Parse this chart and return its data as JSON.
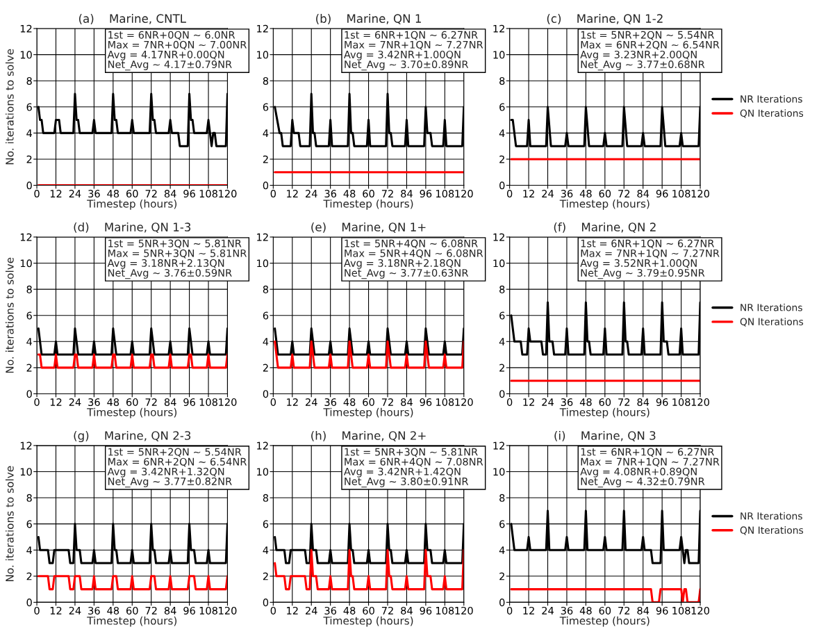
{
  "chart_data": [
    {
      "type": "line",
      "title": "(a)    Marine, CNTL",
      "xlabel": "Timestep (hours)",
      "ylabel": "No. iterations to solve",
      "annotations": [
        "1st = 6NR+0QN ~ 6.0NR\nMax = 7NR+0QN ~ 7.00NR\nAvg = 4.17NR+0.00QN\nNet_Avg ~ 4.17±0.79NR"
      ],
      "xlim": [
        0,
        120
      ],
      "ylim": [
        0,
        12
      ],
      "xticks": [
        0,
        12,
        24,
        36,
        48,
        60,
        72,
        84,
        96,
        108,
        120
      ],
      "yticks": [
        0,
        2,
        4,
        6,
        8,
        10,
        12
      ],
      "grid": true,
      "legend": false,
      "series": [
        {
          "color": "#000000",
          "x": [
            1,
            2,
            3,
            4,
            11,
            12,
            14,
            15,
            23,
            24,
            25,
            26,
            27,
            35,
            36,
            37,
            47,
            48,
            49,
            50,
            51,
            59,
            60,
            61,
            71,
            72,
            73,
            74,
            75,
            83,
            84,
            85,
            89,
            90,
            95,
            96,
            97,
            98,
            99,
            107,
            108,
            109,
            110,
            111,
            112,
            113,
            119,
            120
          ],
          "values": [
            6,
            5,
            5,
            4,
            4,
            5,
            5,
            4,
            4,
            7,
            5,
            5,
            4,
            4,
            5,
            4,
            4,
            7,
            5,
            5,
            4,
            4,
            5,
            4,
            4,
            7,
            5,
            5,
            4,
            4,
            5,
            4,
            4,
            3,
            3,
            7,
            5,
            5,
            4,
            4,
            5,
            4,
            3,
            4,
            4,
            3,
            3,
            7
          ]
        },
        {
          "color": "#ff0000",
          "x": [
            1,
            120
          ],
          "values": [
            0,
            0
          ]
        }
      ]
    },
    {
      "type": "line",
      "title": "(b)    Marine, QN 1",
      "xlabel": "Timestep (hours)",
      "annotations": [
        "1st = 6NR+1QN ~ 6.27NR\nMax = 7NR+1QN ~ 7.27NR\nAvg = 3.42NR+1.00QN\nNet_Avg ~ 3.70±0.89NR"
      ],
      "xlim": [
        0,
        120
      ],
      "ylim": [
        0,
        12
      ],
      "xticks": [
        0,
        12,
        24,
        36,
        48,
        60,
        72,
        84,
        96,
        108,
        120
      ],
      "yticks": [
        0,
        2,
        4,
        6,
        8,
        10,
        12
      ],
      "grid": true,
      "legend": false,
      "series": [
        {
          "color": "#000000",
          "x": [
            1,
            4,
            5,
            6,
            11,
            12,
            13,
            16,
            17,
            23,
            24,
            25,
            26,
            27,
            35,
            36,
            37,
            47,
            48,
            49,
            50,
            51,
            59,
            60,
            61,
            71,
            72,
            73,
            74,
            75,
            83,
            84,
            85,
            95,
            96,
            97,
            99,
            100,
            107,
            108,
            109,
            119,
            120
          ],
          "values": [
            6,
            4,
            4,
            3,
            3,
            5,
            4,
            4,
            3,
            3,
            7,
            4,
            4,
            3,
            3,
            5,
            3,
            3,
            7,
            4,
            4,
            3,
            3,
            5,
            3,
            3,
            7,
            4,
            4,
            3,
            3,
            5,
            3,
            3,
            6,
            4,
            4,
            3,
            3,
            5,
            3,
            3,
            6
          ]
        },
        {
          "color": "#ff0000",
          "x": [
            1,
            120
          ],
          "values": [
            1,
            1
          ]
        }
      ]
    },
    {
      "type": "line",
      "title": "(c)    Marine, QN 1-2",
      "xlabel": "Timestep (hours)",
      "annotations": [
        "1st = 5NR+2QN ~ 5.54NR\nMax = 6NR+2QN ~ 6.54NR\nAvg = 3.23NR+2.00QN\nNet_Avg ~ 3.77±0.68NR"
      ],
      "xlim": [
        0,
        120
      ],
      "ylim": [
        0,
        12
      ],
      "xticks": [
        0,
        12,
        24,
        36,
        48,
        60,
        72,
        84,
        96,
        108,
        120
      ],
      "yticks": [
        0,
        2,
        4,
        6,
        8,
        10,
        12
      ],
      "grid": true,
      "legend": "right",
      "series": [
        {
          "name": "NR Iterations",
          "color": "#000000",
          "x": [
            1,
            2,
            4,
            11,
            12,
            13,
            23,
            24,
            26,
            35,
            36,
            37,
            47,
            48,
            50,
            59,
            60,
            61,
            71,
            72,
            74,
            83,
            84,
            85,
            95,
            96,
            98,
            107,
            108,
            109,
            119,
            120
          ],
          "values": [
            5,
            5,
            3,
            3,
            5,
            3,
            3,
            6,
            3,
            3,
            4,
            3,
            3,
            6,
            3,
            3,
            4,
            3,
            3,
            6,
            3,
            3,
            4,
            3,
            3,
            6,
            3,
            3,
            4,
            3,
            3,
            6
          ]
        },
        {
          "name": "QN Iterations",
          "color": "#ff0000",
          "x": [
            1,
            120
          ],
          "values": [
            2,
            2
          ]
        }
      ]
    },
    {
      "type": "line",
      "title": "(d)    Marine, QN 1-3",
      "xlabel": "Timestep (hours)",
      "ylabel": "No. iterations to solve",
      "annotations": [
        "1st = 5NR+3QN ~ 5.81NR\nMax = 5NR+3QN ~ 5.81NR\nAvg = 3.18NR+2.13QN\nNet_Avg ~ 3.76±0.59NR"
      ],
      "xlim": [
        0,
        120
      ],
      "ylim": [
        0,
        12
      ],
      "xticks": [
        0,
        12,
        24,
        36,
        48,
        60,
        72,
        84,
        96,
        108,
        120
      ],
      "yticks": [
        0,
        2,
        4,
        6,
        8,
        10,
        12
      ],
      "grid": true,
      "legend": false,
      "series": [
        {
          "color": "#000000",
          "x": [
            1,
            3,
            11,
            12,
            13,
            23,
            24,
            26,
            35,
            36,
            37,
            47,
            48,
            50,
            59,
            60,
            61,
            71,
            72,
            74,
            83,
            84,
            85,
            95,
            96,
            98,
            107,
            108,
            109,
            119,
            120
          ],
          "values": [
            5,
            3,
            3,
            4,
            3,
            3,
            5,
            3,
            3,
            4,
            3,
            3,
            5,
            3,
            3,
            4,
            3,
            3,
            5,
            3,
            3,
            4,
            3,
            3,
            5,
            3,
            3,
            4,
            3,
            3,
            5
          ]
        },
        {
          "color": "#ff0000",
          "x": [
            1,
            2,
            3,
            11,
            12,
            13,
            23,
            24,
            25,
            26,
            35,
            36,
            37,
            47,
            48,
            49,
            50,
            59,
            60,
            61,
            71,
            72,
            73,
            74,
            83,
            84,
            85,
            95,
            96,
            97,
            98,
            107,
            108,
            109,
            119,
            120
          ],
          "values": [
            3,
            3,
            2,
            2,
            3,
            2,
            2,
            3,
            3,
            2,
            2,
            3,
            2,
            2,
            3,
            3,
            2,
            2,
            3,
            2,
            2,
            3,
            3,
            2,
            2,
            3,
            2,
            2,
            3,
            3,
            2,
            2,
            3,
            2,
            2,
            3
          ]
        }
      ]
    },
    {
      "type": "line",
      "title": "(e)    Marine, QN 1+",
      "xlabel": "Timestep (hours)",
      "annotations": [
        "1st = 5NR+4QN ~ 6.08NR\nMax = 5NR+4QN ~ 6.08NR\nAvg = 3.18NR+2.18QN\nNet_Avg ~ 3.77±0.63NR"
      ],
      "xlim": [
        0,
        120
      ],
      "ylim": [
        0,
        12
      ],
      "xticks": [
        0,
        12,
        24,
        36,
        48,
        60,
        72,
        84,
        96,
        108,
        120
      ],
      "yticks": [
        0,
        2,
        4,
        6,
        8,
        10,
        12
      ],
      "grid": true,
      "legend": false,
      "series": [
        {
          "color": "#000000",
          "x": [
            1,
            3,
            11,
            12,
            13,
            23,
            24,
            26,
            35,
            36,
            37,
            47,
            48,
            50,
            59,
            60,
            61,
            71,
            72,
            74,
            83,
            84,
            85,
            95,
            96,
            98,
            107,
            108,
            109,
            119,
            120
          ],
          "values": [
            5,
            3,
            3,
            4,
            3,
            3,
            5,
            3,
            3,
            4,
            3,
            3,
            5,
            3,
            3,
            4,
            3,
            3,
            5,
            3,
            3,
            4,
            3,
            3,
            5,
            3,
            3,
            4,
            3,
            3,
            5
          ]
        },
        {
          "color": "#ff0000",
          "x": [
            1,
            3,
            11,
            12,
            13,
            23,
            24,
            26,
            35,
            36,
            37,
            47,
            48,
            50,
            59,
            60,
            61,
            71,
            72,
            74,
            83,
            84,
            85,
            95,
            96,
            98,
            107,
            108,
            109,
            119,
            120
          ],
          "values": [
            4,
            2,
            2,
            3,
            2,
            2,
            4,
            2,
            2,
            3,
            2,
            2,
            4,
            2,
            2,
            3,
            2,
            2,
            4,
            2,
            2,
            3,
            2,
            2,
            4,
            2,
            2,
            3,
            2,
            2,
            4
          ]
        }
      ]
    },
    {
      "type": "line",
      "title": "(f)    Marine, QN 2",
      "xlabel": "Timestep (hours)",
      "annotations": [
        "1st = 6NR+1QN ~ 6.27NR\nMax = 7NR+1QN ~ 7.27NR\nAvg = 3.52NR+1.00QN\nNet_Avg ~ 3.79±0.95NR"
      ],
      "xlim": [
        0,
        120
      ],
      "ylim": [
        0,
        12
      ],
      "xticks": [
        0,
        12,
        24,
        36,
        48,
        60,
        72,
        84,
        96,
        108,
        120
      ],
      "yticks": [
        0,
        2,
        4,
        6,
        8,
        10,
        12
      ],
      "grid": true,
      "legend": "right",
      "series": [
        {
          "name": "NR Iterations",
          "color": "#000000",
          "x": [
            1,
            3,
            7,
            8,
            11,
            12,
            13,
            20,
            21,
            23,
            24,
            25,
            27,
            28,
            35,
            36,
            37,
            47,
            48,
            49,
            50,
            51,
            59,
            60,
            61,
            71,
            72,
            73,
            74,
            75,
            83,
            84,
            85,
            95,
            96,
            97,
            99,
            100,
            107,
            108,
            109,
            119,
            120
          ],
          "values": [
            6,
            4,
            4,
            3,
            3,
            5,
            4,
            4,
            3,
            3,
            7,
            4,
            4,
            3,
            3,
            5,
            3,
            3,
            7,
            4,
            4,
            3,
            3,
            5,
            3,
            3,
            7,
            4,
            4,
            3,
            3,
            5,
            3,
            3,
            7,
            4,
            4,
            3,
            3,
            5,
            3,
            3,
            7
          ]
        },
        {
          "name": "QN Iterations",
          "color": "#ff0000",
          "x": [
            1,
            120
          ],
          "values": [
            1,
            1
          ]
        }
      ]
    },
    {
      "type": "line",
      "title": "(g)    Marine, QN 2-3",
      "xlabel": "Timestep (hours)",
      "ylabel": "No. iterations to solve",
      "annotations": [
        "1st = 5NR+2QN ~ 5.54NR\nMax = 6NR+2QN ~ 6.54NR\nAvg = 3.42NR+1.32QN\nNet_Avg ~ 3.77±0.82NR"
      ],
      "xlim": [
        0,
        120
      ],
      "ylim": [
        0,
        12
      ],
      "xticks": [
        0,
        12,
        24,
        36,
        48,
        60,
        72,
        84,
        96,
        108,
        120
      ],
      "yticks": [
        0,
        2,
        4,
        6,
        8,
        10,
        12
      ],
      "grid": true,
      "legend": false,
      "series": [
        {
          "color": "#000000",
          "x": [
            1,
            2,
            7,
            8,
            10,
            11,
            20,
            21,
            23,
            24,
            25,
            27,
            28,
            35,
            36,
            37,
            47,
            48,
            49,
            50,
            51,
            59,
            60,
            61,
            71,
            72,
            73,
            74,
            75,
            83,
            84,
            85,
            95,
            96,
            97,
            99,
            100,
            107,
            108,
            109,
            119,
            120
          ],
          "values": [
            5,
            4,
            4,
            3,
            3,
            4,
            4,
            3,
            3,
            6,
            4,
            4,
            3,
            3,
            4,
            3,
            3,
            6,
            4,
            4,
            3,
            3,
            4,
            3,
            3,
            6,
            4,
            4,
            3,
            3,
            4,
            3,
            3,
            6,
            4,
            4,
            3,
            3,
            4,
            3,
            3,
            6
          ]
        },
        {
          "color": "#ff0000",
          "x": [
            1,
            7,
            8,
            10,
            11,
            20,
            21,
            23,
            24,
            27,
            28,
            35,
            36,
            37,
            47,
            48,
            50,
            51,
            59,
            60,
            61,
            71,
            72,
            74,
            75,
            83,
            84,
            85,
            95,
            96,
            99,
            100,
            107,
            108,
            109,
            119,
            120
          ],
          "values": [
            2,
            2,
            1,
            1,
            2,
            2,
            1,
            1,
            2,
            2,
            1,
            1,
            2,
            1,
            1,
            2,
            2,
            1,
            1,
            2,
            1,
            1,
            2,
            2,
            1,
            1,
            2,
            1,
            1,
            2,
            2,
            1,
            1,
            2,
            1,
            1,
            2
          ]
        }
      ]
    },
    {
      "type": "line",
      "title": "(h)    Marine, QN 2+",
      "xlabel": "Timestep (hours)",
      "annotations": [
        "1st = 5NR+3QN ~ 5.81NR\nMax = 6NR+4QN ~ 7.08NR\nAvg = 3.42NR+1.42QN\nNet_Avg ~ 3.80±0.91NR"
      ],
      "xlim": [
        0,
        120
      ],
      "ylim": [
        0,
        12
      ],
      "xticks": [
        0,
        12,
        24,
        36,
        48,
        60,
        72,
        84,
        96,
        108,
        120
      ],
      "yticks": [
        0,
        2,
        4,
        6,
        8,
        10,
        12
      ],
      "grid": true,
      "legend": false,
      "series": [
        {
          "color": "#000000",
          "x": [
            1,
            2,
            7,
            8,
            10,
            11,
            20,
            21,
            23,
            24,
            25,
            27,
            28,
            35,
            36,
            37,
            47,
            48,
            49,
            50,
            51,
            59,
            60,
            61,
            71,
            72,
            73,
            74,
            75,
            83,
            84,
            85,
            95,
            96,
            97,
            99,
            100,
            107,
            108,
            109,
            119,
            120
          ],
          "values": [
            5,
            4,
            4,
            3,
            3,
            4,
            4,
            3,
            3,
            6,
            4,
            4,
            3,
            3,
            4,
            3,
            3,
            6,
            4,
            4,
            3,
            3,
            4,
            3,
            3,
            6,
            4,
            4,
            3,
            3,
            4,
            3,
            3,
            6,
            4,
            4,
            3,
            3,
            4,
            3,
            3,
            6
          ]
        },
        {
          "color": "#ff0000",
          "x": [
            1,
            2,
            7,
            8,
            10,
            11,
            20,
            21,
            23,
            24,
            25,
            27,
            28,
            35,
            36,
            37,
            47,
            48,
            49,
            50,
            51,
            59,
            60,
            61,
            71,
            72,
            73,
            74,
            75,
            83,
            84,
            85,
            95,
            96,
            97,
            99,
            100,
            107,
            108,
            109,
            119,
            120
          ],
          "values": [
            3,
            2,
            2,
            1,
            1,
            2,
            2,
            1,
            1,
            4,
            2,
            2,
            1,
            1,
            2,
            1,
            1,
            4,
            2,
            2,
            1,
            1,
            2,
            1,
            1,
            4,
            2,
            2,
            1,
            1,
            2,
            1,
            1,
            4,
            2,
            2,
            1,
            1,
            2,
            1,
            1,
            4
          ]
        }
      ]
    },
    {
      "type": "line",
      "title": "(i)    Marine, QN 3",
      "xlabel": "Timestep (hours)",
      "annotations": [
        "1st = 6NR+1QN ~ 6.27NR\nMax = 7NR+1QN ~ 7.27NR\nAvg = 4.08NR+0.89QN\nNet_Avg ~ 4.32±0.79NR"
      ],
      "xlim": [
        0,
        120
      ],
      "ylim": [
        0,
        12
      ],
      "xticks": [
        0,
        12,
        24,
        36,
        48,
        60,
        72,
        84,
        96,
        108,
        120
      ],
      "yticks": [
        0,
        2,
        4,
        6,
        8,
        10,
        12
      ],
      "grid": true,
      "legend": "right",
      "series": [
        {
          "name": "NR Iterations",
          "color": "#000000",
          "x": [
            1,
            3,
            11,
            12,
            13,
            23,
            24,
            25,
            35,
            36,
            37,
            47,
            48,
            49,
            59,
            60,
            61,
            71,
            72,
            73,
            83,
            84,
            85,
            89,
            90,
            95,
            96,
            97,
            107,
            108,
            109,
            110,
            111,
            112,
            113,
            119,
            120
          ],
          "values": [
            6,
            4,
            4,
            5,
            4,
            4,
            7,
            4,
            4,
            5,
            4,
            4,
            7,
            4,
            4,
            5,
            4,
            4,
            7,
            4,
            4,
            5,
            4,
            4,
            3,
            3,
            7,
            4,
            4,
            5,
            4,
            3,
            4,
            4,
            3,
            3,
            7
          ]
        },
        {
          "name": "QN Iterations",
          "color": "#ff0000",
          "x": [
            1,
            89,
            90,
            94,
            95,
            108,
            109,
            110,
            111,
            112,
            119,
            120
          ],
          "values": [
            1,
            1,
            0,
            0,
            1,
            1,
            0,
            1,
            1,
            0,
            0,
            1
          ]
        }
      ]
    }
  ]
}
